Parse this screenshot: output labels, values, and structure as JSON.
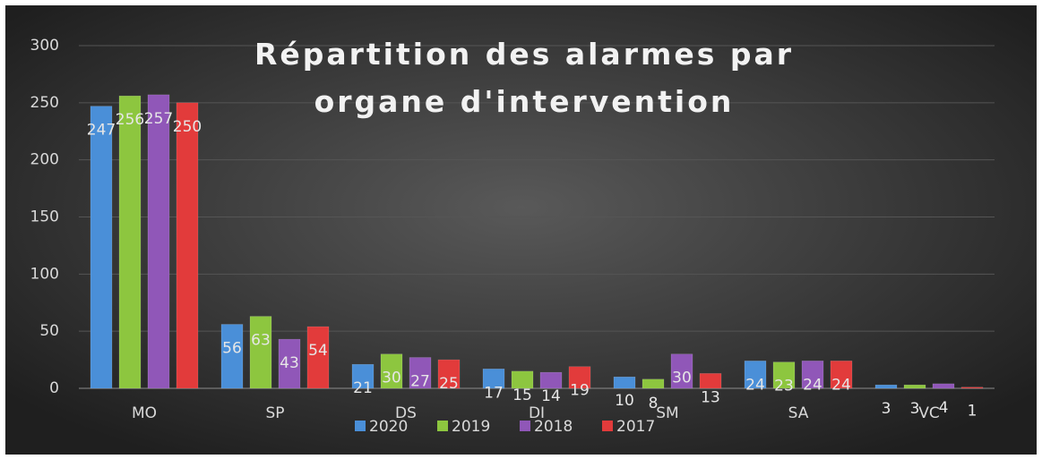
{
  "chart_data": {
    "type": "bar",
    "title": "Répartition des alarmes par organe d'intervention",
    "categories": [
      "MO",
      "SP",
      "DS",
      "DI",
      "SM",
      "SA",
      "VC"
    ],
    "series": [
      {
        "name": "2020",
        "color": "#4a8fd8",
        "values": [
          247,
          56,
          21,
          17,
          10,
          24,
          3
        ]
      },
      {
        "name": "2019",
        "color": "#8dc63f",
        "values": [
          256,
          63,
          30,
          15,
          8,
          23,
          3
        ]
      },
      {
        "name": "2018",
        "color": "#9057b8",
        "values": [
          257,
          43,
          27,
          14,
          30,
          24,
          4
        ]
      },
      {
        "name": "2017",
        "color": "#e23b3b",
        "values": [
          250,
          54,
          25,
          19,
          13,
          24,
          1
        ]
      }
    ],
    "ylim": [
      0,
      300
    ],
    "yticks": [
      0,
      50,
      100,
      150,
      200,
      250,
      300
    ],
    "grid": true,
    "legend": "bottom"
  }
}
